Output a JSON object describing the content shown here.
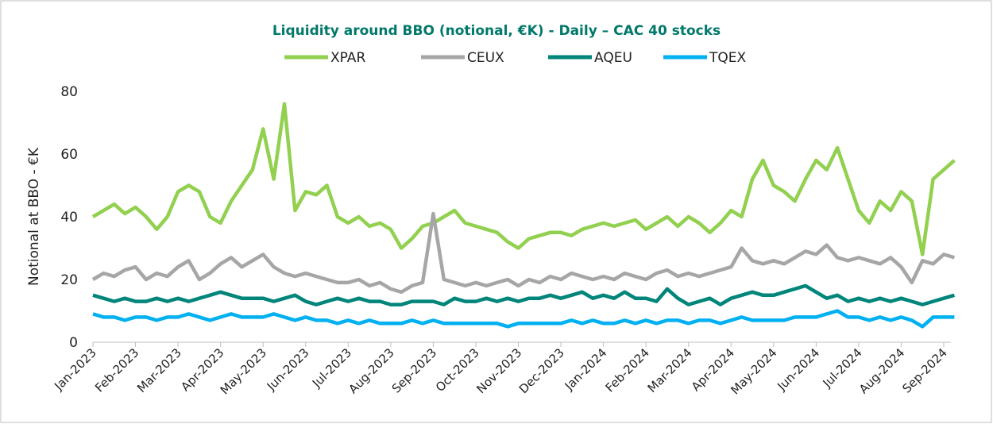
{
  "chart_data": {
    "type": "line",
    "title": "Liquidity around BBO (notional, €K) - Daily – CAC 40 stocks",
    "y_label": "Notional at BBO - €K",
    "categories": [
      "Jan-2023",
      null,
      null,
      null,
      "Feb-2023",
      null,
      null,
      null,
      "Mar-2023",
      null,
      null,
      null,
      "Apr-2023",
      null,
      null,
      null,
      "May-2023",
      null,
      null,
      null,
      "Jun-2023",
      null,
      null,
      null,
      "Jul-2023",
      null,
      null,
      null,
      "Aug-2023",
      null,
      null,
      null,
      "Sep-2023",
      null,
      null,
      null,
      "Oct-2023",
      null,
      null,
      null,
      "Nov-2023",
      null,
      null,
      null,
      "Dec-2023",
      null,
      null,
      null,
      "Jan-2024",
      null,
      null,
      null,
      "Feb-2024",
      null,
      null,
      null,
      "Mar-2024",
      null,
      null,
      null,
      "Apr-2024",
      null,
      null,
      null,
      "May-2024",
      null,
      null,
      null,
      "Jun-2024",
      null,
      null,
      null,
      "Jul-2024",
      null,
      null,
      null,
      "Aug-2024",
      null,
      null,
      null,
      "Sep-2024",
      null
    ],
    "series": [
      {
        "name": "XPAR",
        "color": "#92d050",
        "values": [
          40,
          42,
          44,
          41,
          43,
          40,
          36,
          40,
          48,
          50,
          48,
          40,
          38,
          45,
          50,
          55,
          68,
          52,
          76,
          42,
          48,
          47,
          50,
          40,
          38,
          40,
          37,
          38,
          36,
          30,
          33,
          37,
          38,
          40,
          42,
          38,
          37,
          36,
          35,
          32,
          30,
          33,
          34,
          35,
          35,
          34,
          36,
          37,
          38,
          37,
          38,
          39,
          36,
          38,
          40,
          37,
          40,
          38,
          35,
          38,
          42,
          40,
          52,
          58,
          50,
          48,
          45,
          52,
          58,
          55,
          62,
          52,
          42,
          38,
          45,
          42,
          48,
          45,
          28,
          52,
          55,
          58
        ]
      },
      {
        "name": "CEUX",
        "color": "#a6a6a6",
        "values": [
          20,
          22,
          21,
          23,
          24,
          20,
          22,
          21,
          24,
          26,
          20,
          22,
          25,
          27,
          24,
          26,
          28,
          24,
          22,
          21,
          22,
          21,
          20,
          19,
          19,
          20,
          18,
          19,
          17,
          16,
          18,
          19,
          41,
          20,
          19,
          18,
          19,
          18,
          19,
          20,
          18,
          20,
          19,
          21,
          20,
          22,
          21,
          20,
          21,
          20,
          22,
          21,
          20,
          22,
          23,
          21,
          22,
          21,
          22,
          23,
          24,
          30,
          26,
          25,
          26,
          25,
          27,
          29,
          28,
          31,
          27,
          26,
          27,
          26,
          25,
          27,
          24,
          19,
          26,
          25,
          28,
          27
        ]
      },
      {
        "name": "AQEU",
        "color": "#00857a",
        "values": [
          15,
          14,
          13,
          14,
          13,
          13,
          14,
          13,
          14,
          13,
          14,
          15,
          16,
          15,
          14,
          14,
          14,
          13,
          14,
          15,
          13,
          12,
          13,
          14,
          13,
          14,
          13,
          13,
          12,
          12,
          13,
          13,
          13,
          12,
          14,
          13,
          13,
          14,
          13,
          14,
          13,
          14,
          14,
          15,
          14,
          15,
          16,
          14,
          15,
          14,
          16,
          14,
          14,
          13,
          17,
          14,
          12,
          13,
          14,
          12,
          14,
          15,
          16,
          15,
          15,
          16,
          17,
          18,
          16,
          14,
          15,
          13,
          14,
          13,
          14,
          13,
          14,
          13,
          12,
          13,
          14,
          15
        ]
      },
      {
        "name": "TQEX",
        "color": "#00b0f0",
        "values": [
          9,
          8,
          8,
          7,
          8,
          8,
          7,
          8,
          8,
          9,
          8,
          7,
          8,
          9,
          8,
          8,
          8,
          9,
          8,
          7,
          8,
          7,
          7,
          6,
          7,
          6,
          7,
          6,
          6,
          6,
          7,
          6,
          7,
          6,
          6,
          6,
          6,
          6,
          6,
          5,
          6,
          6,
          6,
          6,
          6,
          7,
          6,
          7,
          6,
          6,
          7,
          6,
          7,
          6,
          7,
          7,
          6,
          7,
          7,
          6,
          7,
          8,
          7,
          7,
          7,
          7,
          8,
          8,
          8,
          9,
          10,
          8,
          8,
          7,
          8,
          7,
          8,
          7,
          5,
          8,
          8,
          8
        ]
      }
    ],
    "ylim": [
      0,
      80
    ],
    "yticks": [
      0,
      20,
      40,
      60,
      80
    ]
  }
}
